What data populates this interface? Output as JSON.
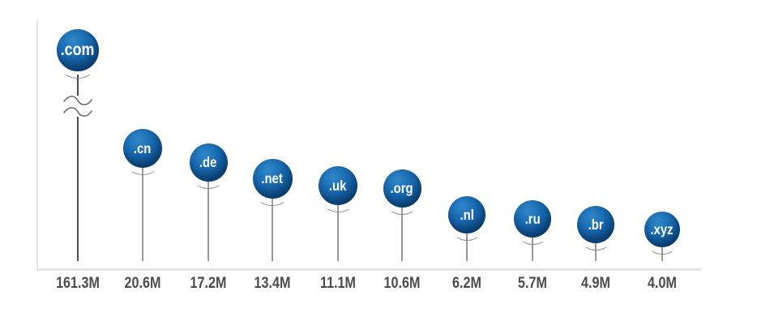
{
  "chart_data": {
    "type": "lollipop",
    "title": "",
    "description": "Top-level domains by number of registered domains, balloon/lollipop style chart with broken axis on the first item",
    "categories": [
      ".com",
      ".cn",
      ".de",
      ".net",
      ".uk",
      ".org",
      ".nl",
      ".ru",
      ".br",
      ".xyz"
    ],
    "values": [
      161.3,
      20.6,
      17.2,
      13.4,
      11.1,
      10.6,
      6.2,
      5.7,
      4.9,
      4.0
    ],
    "value_labels": [
      "161.3M",
      "20.6M",
      "17.2M",
      "13.4M",
      "11.1M",
      "10.6M",
      "6.2M",
      "5.7M",
      "4.9M",
      "4.0M"
    ],
    "unit": "M",
    "axis_break_category": ".com",
    "grid": false,
    "legend": null,
    "axes": {
      "y_axis_visible": true,
      "x_axis_visible": true,
      "tick_labels": "values below baseline"
    }
  },
  "style": {
    "background": "#ffffff",
    "axis_color": "#e4e4e4",
    "stem_color": "#97999a",
    "com_stem_color": "#4c4c4c",
    "balloon_gradient_top": "#2f87c9",
    "balloon_gradient_mid": "#1767ae",
    "balloon_gradient_edge": "#0d4a82",
    "balloon_gradient_rim": "#0b3a68",
    "balloon_text_color": "#ffffff",
    "value_label_color": "#4c4c4c",
    "break_icon_color": "#6a6a6a",
    "knot_arc_color": "#8a8a8a"
  }
}
